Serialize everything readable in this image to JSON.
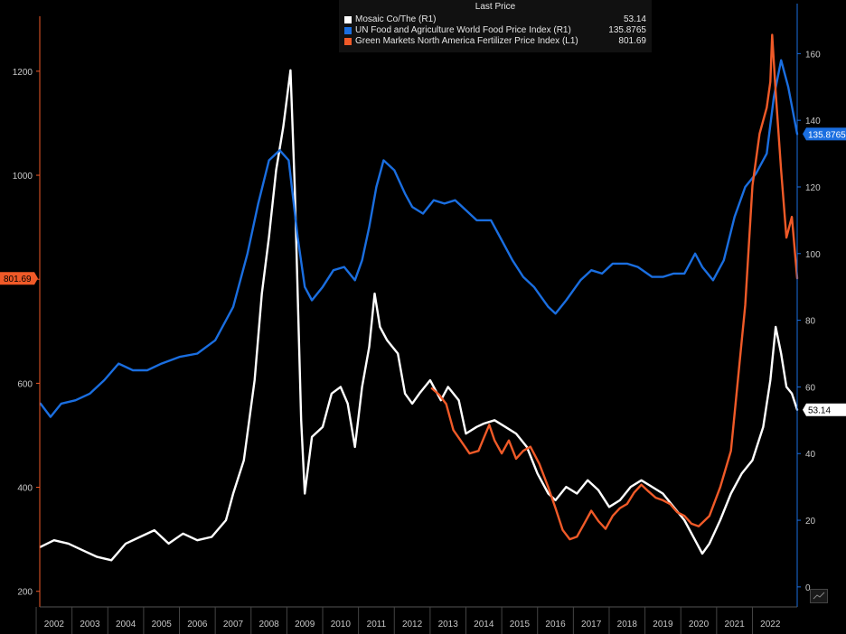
{
  "legend": {
    "header": "Last Price",
    "items": [
      {
        "name": "Mosaic Co/The  (R1)",
        "value": "53.14",
        "color": "#ffffff"
      },
      {
        "name": "UN Food and Agriculture World Food Price Index  (R1)",
        "value": "135.8765",
        "color": "#1a6ee0"
      },
      {
        "name": "Green Markets North America Fertilizer Price Index  (L1)",
        "value": "801.69",
        "color": "#f05a28"
      }
    ]
  },
  "colors": {
    "background": "#000000",
    "left_axis": "#f05a28",
    "right_axis": "#1a6ee0",
    "tick_text": "#c8c8c8"
  },
  "chart_data": {
    "type": "line",
    "x_categories": [
      "2002",
      "2003",
      "2004",
      "2005",
      "2006",
      "2007",
      "2008",
      "2009",
      "2010",
      "2011",
      "2012",
      "2013",
      "2014",
      "2015",
      "2016",
      "2017",
      "2018",
      "2019",
      "2020",
      "2021",
      "2022"
    ],
    "x_range": [
      2001.6,
      2022.75
    ],
    "left_axis": {
      "ticks": [
        200,
        400,
        600,
        800,
        1000,
        1200
      ],
      "ylim": [
        170,
        1330
      ],
      "last_value_label": "801.69"
    },
    "right_axis": {
      "ticks": [
        0,
        20,
        40,
        60,
        80,
        100,
        120,
        140,
        160
      ],
      "ylim": [
        -6,
        175
      ],
      "last_value_labels": [
        "135.8765",
        "53.14"
      ]
    },
    "series": [
      {
        "name": "Mosaic Co/The",
        "axis": "right",
        "color": "#ffffff",
        "points": [
          [
            2001.62,
            12
          ],
          [
            2002.0,
            14
          ],
          [
            2002.4,
            13
          ],
          [
            2002.8,
            11
          ],
          [
            2003.2,
            9
          ],
          [
            2003.6,
            8
          ],
          [
            2004.0,
            13
          ],
          [
            2004.4,
            15
          ],
          [
            2004.8,
            17
          ],
          [
            2005.2,
            13
          ],
          [
            2005.6,
            16
          ],
          [
            2006.0,
            14
          ],
          [
            2006.4,
            15
          ],
          [
            2006.8,
            20
          ],
          [
            2007.0,
            28
          ],
          [
            2007.3,
            38
          ],
          [
            2007.6,
            62
          ],
          [
            2007.8,
            88
          ],
          [
            2008.0,
            105
          ],
          [
            2008.2,
            125
          ],
          [
            2008.4,
            138
          ],
          [
            2008.6,
            155
          ],
          [
            2008.72,
            120
          ],
          [
            2008.9,
            50
          ],
          [
            2009.0,
            28
          ],
          [
            2009.2,
            45
          ],
          [
            2009.5,
            48
          ],
          [
            2009.75,
            58
          ],
          [
            2010.0,
            60
          ],
          [
            2010.2,
            55
          ],
          [
            2010.4,
            42
          ],
          [
            2010.6,
            60
          ],
          [
            2010.8,
            72
          ],
          [
            2010.95,
            88
          ],
          [
            2011.1,
            78
          ],
          [
            2011.3,
            74
          ],
          [
            2011.6,
            70
          ],
          [
            2011.8,
            58
          ],
          [
            2012.0,
            55
          ],
          [
            2012.2,
            58
          ],
          [
            2012.5,
            62
          ],
          [
            2012.8,
            56
          ],
          [
            2013.0,
            60
          ],
          [
            2013.3,
            56
          ],
          [
            2013.5,
            46
          ],
          [
            2013.8,
            48
          ],
          [
            2014.0,
            49
          ],
          [
            2014.3,
            50
          ],
          [
            2014.6,
            48
          ],
          [
            2014.9,
            46
          ],
          [
            2015.2,
            42
          ],
          [
            2015.5,
            34
          ],
          [
            2015.8,
            28
          ],
          [
            2016.0,
            26
          ],
          [
            2016.3,
            30
          ],
          [
            2016.6,
            28
          ],
          [
            2016.9,
            32
          ],
          [
            2017.2,
            29
          ],
          [
            2017.5,
            24
          ],
          [
            2017.8,
            26
          ],
          [
            2018.1,
            30
          ],
          [
            2018.4,
            32
          ],
          [
            2018.7,
            30
          ],
          [
            2019.0,
            28
          ],
          [
            2019.3,
            24
          ],
          [
            2019.6,
            20
          ],
          [
            2019.9,
            14
          ],
          [
            2020.1,
            10
          ],
          [
            2020.3,
            13
          ],
          [
            2020.6,
            20
          ],
          [
            2020.9,
            28
          ],
          [
            2021.2,
            34
          ],
          [
            2021.5,
            38
          ],
          [
            2021.8,
            48
          ],
          [
            2022.0,
            62
          ],
          [
            2022.15,
            78
          ],
          [
            2022.3,
            70
          ],
          [
            2022.45,
            60
          ],
          [
            2022.6,
            58
          ],
          [
            2022.75,
            53.14
          ]
        ]
      },
      {
        "name": "UN Food and Agriculture World Food Price Index",
        "axis": "right",
        "color": "#1a6ee0",
        "points": [
          [
            2001.62,
            55
          ],
          [
            2001.9,
            51
          ],
          [
            2002.2,
            55
          ],
          [
            2002.6,
            56
          ],
          [
            2003.0,
            58
          ],
          [
            2003.4,
            62
          ],
          [
            2003.8,
            67
          ],
          [
            2004.2,
            65
          ],
          [
            2004.6,
            65
          ],
          [
            2005.0,
            67
          ],
          [
            2005.5,
            69
          ],
          [
            2006.0,
            70
          ],
          [
            2006.5,
            74
          ],
          [
            2007.0,
            84
          ],
          [
            2007.4,
            100
          ],
          [
            2007.7,
            115
          ],
          [
            2008.0,
            128
          ],
          [
            2008.3,
            131
          ],
          [
            2008.55,
            128
          ],
          [
            2008.8,
            105
          ],
          [
            2009.0,
            90
          ],
          [
            2009.2,
            86
          ],
          [
            2009.5,
            90
          ],
          [
            2009.8,
            95
          ],
          [
            2010.1,
            96
          ],
          [
            2010.4,
            92
          ],
          [
            2010.6,
            98
          ],
          [
            2010.8,
            108
          ],
          [
            2011.0,
            120
          ],
          [
            2011.2,
            128
          ],
          [
            2011.5,
            125
          ],
          [
            2011.8,
            118
          ],
          [
            2012.0,
            114
          ],
          [
            2012.3,
            112
          ],
          [
            2012.6,
            116
          ],
          [
            2012.9,
            115
          ],
          [
            2013.2,
            116
          ],
          [
            2013.5,
            113
          ],
          [
            2013.8,
            110
          ],
          [
            2014.2,
            110
          ],
          [
            2014.5,
            104
          ],
          [
            2014.8,
            98
          ],
          [
            2015.1,
            93
          ],
          [
            2015.4,
            90
          ],
          [
            2015.8,
            84
          ],
          [
            2016.0,
            82
          ],
          [
            2016.3,
            86
          ],
          [
            2016.7,
            92
          ],
          [
            2017.0,
            95
          ],
          [
            2017.3,
            94
          ],
          [
            2017.6,
            97
          ],
          [
            2018.0,
            97
          ],
          [
            2018.3,
            96
          ],
          [
            2018.7,
            93
          ],
          [
            2019.0,
            93
          ],
          [
            2019.3,
            94
          ],
          [
            2019.6,
            94
          ],
          [
            2019.9,
            100
          ],
          [
            2020.1,
            96
          ],
          [
            2020.4,
            92
          ],
          [
            2020.7,
            98
          ],
          [
            2021.0,
            111
          ],
          [
            2021.3,
            120
          ],
          [
            2021.6,
            124
          ],
          [
            2021.9,
            130
          ],
          [
            2022.1,
            147
          ],
          [
            2022.3,
            158
          ],
          [
            2022.5,
            150
          ],
          [
            2022.75,
            135.8765
          ]
        ]
      },
      {
        "name": "Green Markets North America Fertilizer Price Index",
        "axis": "left",
        "color": "#f05a28",
        "points": [
          [
            2012.55,
            590
          ],
          [
            2012.75,
            578
          ],
          [
            2012.95,
            560
          ],
          [
            2013.15,
            510
          ],
          [
            2013.35,
            490
          ],
          [
            2013.6,
            465
          ],
          [
            2013.85,
            470
          ],
          [
            2014.0,
            495
          ],
          [
            2014.15,
            520
          ],
          [
            2014.3,
            490
          ],
          [
            2014.5,
            465
          ],
          [
            2014.7,
            490
          ],
          [
            2014.9,
            455
          ],
          [
            2015.1,
            470
          ],
          [
            2015.3,
            478
          ],
          [
            2015.55,
            445
          ],
          [
            2015.8,
            400
          ],
          [
            2016.0,
            360
          ],
          [
            2016.2,
            318
          ],
          [
            2016.4,
            300
          ],
          [
            2016.6,
            305
          ],
          [
            2016.8,
            330
          ],
          [
            2017.0,
            355
          ],
          [
            2017.2,
            335
          ],
          [
            2017.4,
            320
          ],
          [
            2017.6,
            345
          ],
          [
            2017.8,
            360
          ],
          [
            2018.0,
            368
          ],
          [
            2018.2,
            390
          ],
          [
            2018.4,
            405
          ],
          [
            2018.6,
            392
          ],
          [
            2018.8,
            380
          ],
          [
            2019.0,
            375
          ],
          [
            2019.2,
            368
          ],
          [
            2019.4,
            352
          ],
          [
            2019.6,
            345
          ],
          [
            2019.8,
            330
          ],
          [
            2020.0,
            325
          ],
          [
            2020.3,
            345
          ],
          [
            2020.6,
            400
          ],
          [
            2020.9,
            470
          ],
          [
            2021.1,
            610
          ],
          [
            2021.3,
            750
          ],
          [
            2021.5,
            980
          ],
          [
            2021.7,
            1080
          ],
          [
            2021.9,
            1130
          ],
          [
            2022.0,
            1180
          ],
          [
            2022.05,
            1270
          ],
          [
            2022.15,
            1160
          ],
          [
            2022.3,
            1010
          ],
          [
            2022.45,
            880
          ],
          [
            2022.6,
            920
          ],
          [
            2022.75,
            801.69
          ]
        ]
      }
    ]
  }
}
